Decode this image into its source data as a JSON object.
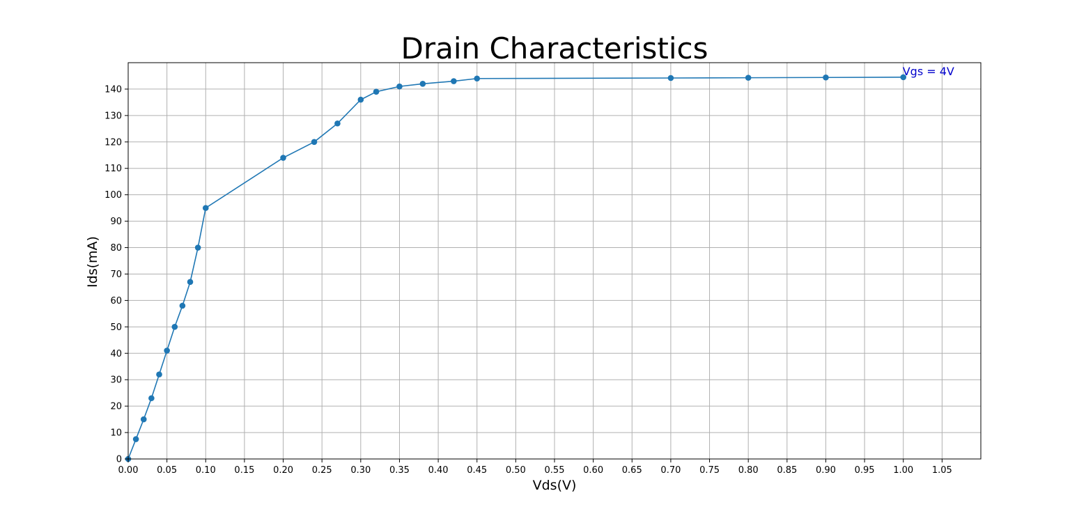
{
  "chart_data": {
    "type": "line",
    "title": "Drain Characteristics",
    "xlabel": "Vds(V)",
    "ylabel": "Ids(mA)",
    "xlim": [
      0,
      1.1
    ],
    "ylim": [
      0,
      150
    ],
    "x_ticks": [
      "0.00",
      "0.05",
      "0.10",
      "0.15",
      "0.20",
      "0.25",
      "0.30",
      "0.35",
      "0.40",
      "0.45",
      "0.50",
      "0.55",
      "0.60",
      "0.65",
      "0.70",
      "0.75",
      "0.80",
      "0.85",
      "0.90",
      "0.95",
      "1.00",
      "1.05"
    ],
    "y_ticks": [
      "0",
      "10",
      "20",
      "30",
      "40",
      "50",
      "60",
      "70",
      "80",
      "90",
      "100",
      "110",
      "120",
      "130",
      "140"
    ],
    "grid": true,
    "series": [
      {
        "color": "#1f77b4",
        "marker": "circle",
        "x": [
          0,
          0.01,
          0.02,
          0.03,
          0.04,
          0.05,
          0.06,
          0.07,
          0.08,
          0.09,
          0.1,
          0.2,
          0.24,
          0.27,
          0.3,
          0.32,
          0.35,
          0.38,
          0.42,
          0.45,
          0.7,
          0.8,
          0.9,
          1.0
        ],
        "y": [
          0,
          7.5,
          15,
          23,
          32,
          41,
          50,
          58,
          67,
          80,
          95,
          114,
          120,
          127,
          136,
          139,
          141,
          142,
          143,
          144,
          144.2,
          144.3,
          144.4,
          144.5
        ]
      }
    ],
    "annotations": [
      {
        "text": "Vgs = 4V",
        "x": 1.0,
        "y": 145.5,
        "color": "#0000cc"
      }
    ]
  }
}
